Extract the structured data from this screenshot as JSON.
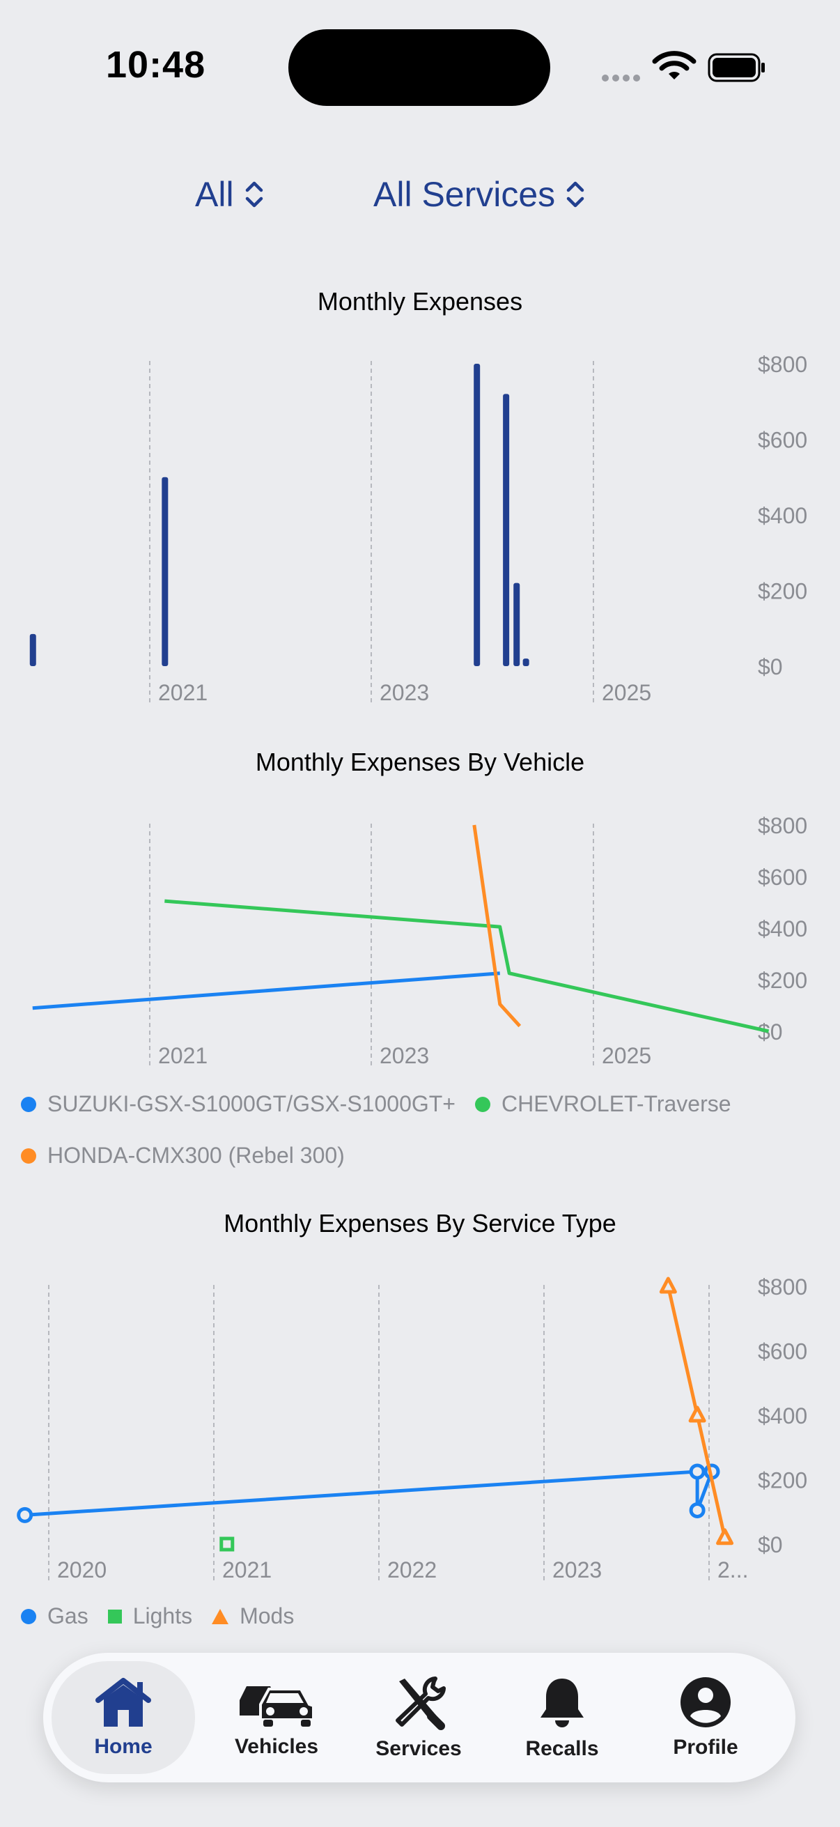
{
  "status": {
    "time": "10:48"
  },
  "filters": {
    "vehicle": "All",
    "service": "All Services"
  },
  "charts": {
    "expenses": {
      "title": "Monthly Expenses"
    },
    "by_vehicle": {
      "title": "Monthly Expenses By Vehicle"
    },
    "by_service": {
      "title": "Monthly Expenses By Service Type"
    }
  },
  "chart_data": [
    {
      "type": "bar",
      "title": "Monthly Expenses",
      "x_ticks": [
        "2021",
        "2023",
        "2025"
      ],
      "y_ticks": [
        "$800",
        "$600",
        "$400",
        "$200",
        "$0"
      ],
      "ylim": [
        0,
        800
      ],
      "xlim": [
        2019.9,
        2026.1
      ],
      "points": [
        {
          "x": 2020.0,
          "y": 85
        },
        {
          "x": 2021.13,
          "y": 500
        },
        {
          "x": 2023.8,
          "y": 800
        },
        {
          "x": 2024.05,
          "y": 720
        },
        {
          "x": 2024.14,
          "y": 220
        },
        {
          "x": 2024.22,
          "y": 20
        }
      ],
      "color": "#213f8f"
    },
    {
      "type": "line",
      "title": "Monthly Expenses By Vehicle",
      "x_ticks": [
        "2021",
        "2023",
        "2025"
      ],
      "y_ticks": [
        "$800",
        "$600",
        "$400",
        "$200",
        "$0"
      ],
      "ylim": [
        0,
        800
      ],
      "xlim": [
        2019.9,
        2026.1
      ],
      "series": [
        {
          "name": "SUZUKI-GSX-S1000GT/GSX-S1000GT+",
          "color": "#1a82f2",
          "points": [
            [
              2020.0,
              90
            ],
            [
              2024.0,
              225
            ]
          ]
        },
        {
          "name": "CHEVROLET-Traverse",
          "color": "#34c759",
          "points": [
            [
              2021.13,
              505
            ],
            [
              2024.0,
              405
            ],
            [
              2024.08,
              225
            ],
            [
              2026.3,
              0
            ]
          ]
        },
        {
          "name": "HONDA-CMX300 (Rebel 300)",
          "color": "#ff8c24",
          "points": [
            [
              2023.78,
              800
            ],
            [
              2024.0,
              105
            ],
            [
              2024.17,
              20
            ]
          ]
        }
      ]
    },
    {
      "type": "line",
      "title": "Monthly Expenses By Service Type",
      "x_ticks": [
        "2020",
        "2021",
        "2022",
        "2023",
        "2..."
      ],
      "y_ticks": [
        "$800",
        "$600",
        "$400",
        "$200",
        "$0"
      ],
      "ylim": [
        0,
        800
      ],
      "xlim": [
        2019.88,
        2024.12
      ],
      "series": [
        {
          "name": "Gas",
          "color": "#1a82f2",
          "marker": "circle",
          "points": [
            [
              2019.87,
              90
            ],
            [
              2024.03,
              225
            ],
            [
              2024.03,
              105
            ],
            [
              2024.12,
              225
            ]
          ]
        },
        {
          "name": "Lights",
          "color": "#34c759",
          "marker": "square",
          "points": [
            [
              2021.12,
              0
            ]
          ]
        },
        {
          "name": "Mods",
          "color": "#ff8c24",
          "marker": "triangle",
          "points": [
            [
              2023.85,
              800
            ],
            [
              2024.03,
              400
            ],
            [
              2024.2,
              20
            ]
          ]
        }
      ]
    }
  ],
  "legends": {
    "vehicle": [
      {
        "label": "SUZUKI-GSX-S1000GT/GSX-S1000GT+",
        "color": "#1a82f2"
      },
      {
        "label": "CHEVROLET-Traverse",
        "color": "#34c759"
      },
      {
        "label": "HONDA-CMX300 (Rebel 300)",
        "color": "#ff8c24"
      }
    ],
    "service": [
      {
        "label": "Gas",
        "color": "#1a82f2"
      },
      {
        "label": "Lights",
        "color": "#34c759"
      },
      {
        "label": "Mods",
        "color": "#ff8c24"
      }
    ]
  },
  "tabs": [
    {
      "label": "Home",
      "icon": "house-icon",
      "active": true
    },
    {
      "label": "Vehicles",
      "icon": "cars-icon"
    },
    {
      "label": "Services",
      "icon": "wrench-screwdriver-icon"
    },
    {
      "label": "Recalls",
      "icon": "bell-icon"
    },
    {
      "label": "Profile",
      "icon": "person-circle-icon"
    }
  ]
}
